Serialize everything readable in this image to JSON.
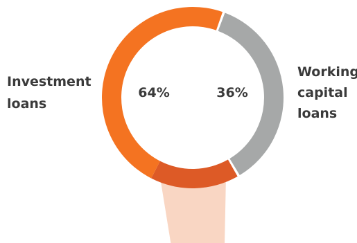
{
  "chart_data": {
    "type": "pie",
    "title": "",
    "slices": [
      {
        "name": "Investment loans",
        "label_lines": [
          "Investment",
          "loans"
        ],
        "value": 64,
        "value_label": "64%",
        "color": "#f47321",
        "highlight": {
          "value": 16,
          "color": "#dd5a26"
        }
      },
      {
        "name": "Working capital loans",
        "label_lines": [
          "Working",
          "capital",
          "loans"
        ],
        "value": 36,
        "value_label": "36%",
        "color": "#a6a8a8"
      }
    ],
    "callout_color": "#f9d6c3",
    "legend_placement": "sides"
  }
}
